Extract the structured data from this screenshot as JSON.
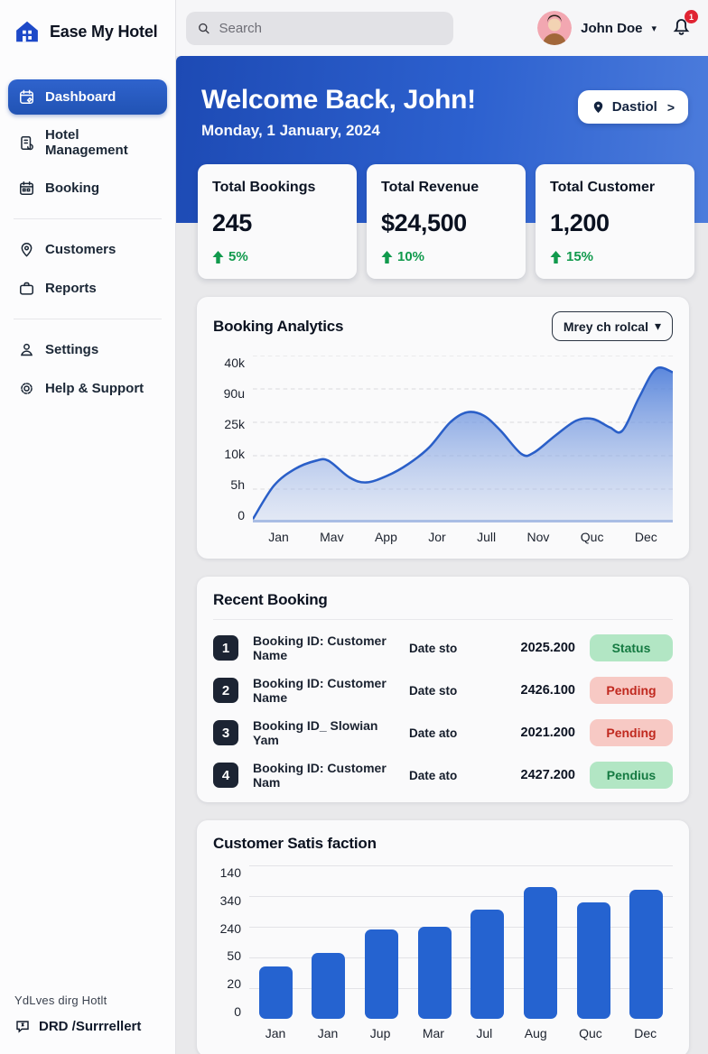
{
  "app": {
    "logo_text": "Ease My Hotel"
  },
  "header": {
    "search_placeholder": "Search",
    "user_name": "John Doe",
    "notification_count": "1"
  },
  "sidebar": {
    "items": [
      {
        "label": "Dashboard",
        "active": true
      },
      {
        "label": "Hotel Management",
        "active": false
      },
      {
        "label": "Booking",
        "active": false
      },
      {
        "label": "Customers",
        "active": false
      },
      {
        "label": "Reports",
        "active": false
      },
      {
        "label": "Settings",
        "active": false
      },
      {
        "label": "Help & Support",
        "active": false
      }
    ],
    "footer_note": "YdLves dirg Hotlt",
    "footer_label": "DRD /Surrrellert"
  },
  "banner": {
    "title": "Welcome Back, John!",
    "date": "Monday, 1 January, 2024",
    "button_label": "Dastiol",
    "button_arrow": ">"
  },
  "stats": [
    {
      "title": "Total Bookings",
      "value": "245",
      "delta": "5%"
    },
    {
      "title": "Total Revenue",
      "value": "$24,500",
      "delta": "10%"
    },
    {
      "title": "Total Customer",
      "value": "1,200",
      "delta": "15%"
    }
  ],
  "analytics": {
    "title": "Booking Analytics",
    "filter_label": "Mrey ch rolcal"
  },
  "recent": {
    "title": "Recent Booking",
    "rows": [
      {
        "num": "1",
        "title": "Booking ID: Customer Name",
        "date": "Date sto",
        "amount": "2025.200",
        "status": "Status",
        "badge_type": "green"
      },
      {
        "num": "2",
        "title": "Booking ID: Customer Name",
        "date": "Date sto",
        "amount": "2426.100",
        "status": "Pending",
        "badge_type": "red"
      },
      {
        "num": "3",
        "title": "Booking ID_ Slowian Yam",
        "date": "Date ato",
        "amount": "2021.200",
        "status": "Pending",
        "badge_type": "red"
      },
      {
        "num": "4",
        "title": "Booking ID: Customer Nam",
        "date": "Date ato",
        "amount": "2427.200",
        "status": "Pendius",
        "badge_type": "green"
      }
    ]
  },
  "satisfaction": {
    "title": "Customer Satis faction"
  },
  "colors": {
    "accent_blue": "#2563d0",
    "banner_gradient": [
      "#1d4ab4",
      "#4c7cdc"
    ],
    "green_delta": "#119a4d",
    "badge_green_bg": "#b2e6c4",
    "badge_green_text": "#157a42",
    "badge_red_bg": "#f7c9c4",
    "badge_red_text": "#c0291f",
    "row_number_bg": "#1c2433",
    "notification_red": "#e02433"
  },
  "chart_data": [
    {
      "type": "area",
      "title": "Booking Analytics",
      "x": [
        "Jan",
        "Mav",
        "App",
        "Jor",
        "Jull",
        "Nov",
        "Quc",
        "Dec"
      ],
      "yticks_top_to_bottom": [
        "40k",
        "90u",
        "25k",
        "10k",
        "5h",
        "0"
      ],
      "ylim": [
        0,
        40000
      ],
      "grid": true,
      "legend": false,
      "line_color": "#2a5fc8",
      "points_pct": [
        [
          0,
          2
        ],
        [
          5,
          22
        ],
        [
          10,
          32
        ],
        [
          15,
          37
        ],
        [
          18,
          37
        ],
        [
          23,
          27
        ],
        [
          27,
          24
        ],
        [
          32,
          28
        ],
        [
          37,
          35
        ],
        [
          42,
          45
        ],
        [
          47,
          60
        ],
        [
          51,
          66
        ],
        [
          55,
          64
        ],
        [
          59,
          55
        ],
        [
          64,
          41
        ],
        [
          67,
          42
        ],
        [
          72,
          52
        ],
        [
          77,
          61
        ],
        [
          81,
          62
        ],
        [
          85,
          57
        ],
        [
          88,
          55
        ],
        [
          92,
          75
        ],
        [
          96,
          92
        ],
        [
          100,
          90
        ]
      ],
      "values_at_labels_pct_of_max": [
        25,
        37,
        25,
        39,
        64,
        44,
        62,
        91
      ]
    },
    {
      "type": "bar",
      "title": "Customer Satis faction",
      "categories": [
        "Jan",
        "Jan",
        "Jup",
        "Mar",
        "Jul",
        "Aug",
        "Quc",
        "Dec"
      ],
      "yticks_top_to_bottom": [
        "140",
        "340",
        "240",
        "50",
        "20",
        "0"
      ],
      "values_pct": [
        34,
        43,
        58,
        60,
        71,
        86,
        76,
        84
      ],
      "bar_color": "#2563d0",
      "grid": true,
      "legend": false
    }
  ]
}
